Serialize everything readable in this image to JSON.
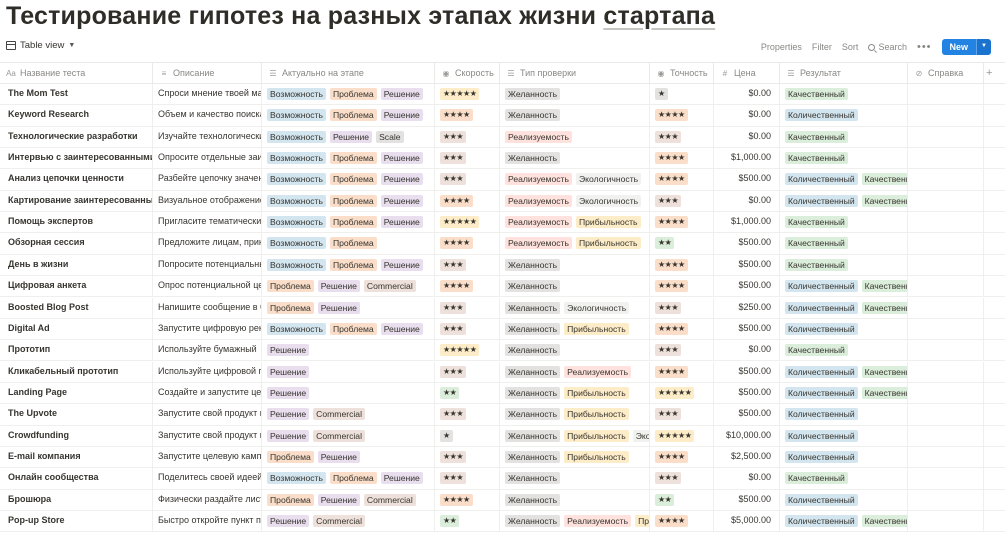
{
  "page_title_main": "Тестирование гипотез на разных этапах жизни ",
  "page_title_link": "стартапа",
  "toolbar": {
    "view_label": "Table view",
    "properties": "Properties",
    "filter": "Filter",
    "sort": "Sort",
    "search": "Search",
    "more": "•••",
    "new_label": "New",
    "new_drop": "▼"
  },
  "columns": [
    {
      "label": "Название теста",
      "icon": "Aa"
    },
    {
      "label": "Описание",
      "icon": "≡"
    },
    {
      "label": "Актуально на этапе",
      "icon": "☰"
    },
    {
      "label": "Скорость",
      "icon": "◉"
    },
    {
      "label": "Тип проверки",
      "icon": "☰"
    },
    {
      "label": "Точность",
      "icon": "◉"
    },
    {
      "label": "Цена",
      "icon": "#"
    },
    {
      "label": "Результат",
      "icon": "☰"
    },
    {
      "label": "Справка",
      "icon": "⊘"
    }
  ],
  "tag_colors": {
    "Возможность": "t-blue",
    "Проблема": "t-orange",
    "Решение": "t-purple",
    "Scale": "t-gray",
    "Commercial": "t-brown",
    "Желанность": "t-gray",
    "Реализуемость": "t-red",
    "Экологичность": "t-lightgray",
    "Прибыльность": "t-yellow",
    "Качественный": "t-green",
    "Количественный": "t-blue"
  },
  "rows": [
    {
      "name": "The Mom Test",
      "desc": "Спроси мнение твоей мамы",
      "stage": [
        "Возможность",
        "Проблема",
        "Решение"
      ],
      "speed": "★★★★★",
      "speed_color": "t-yellow",
      "check": [
        "Желанность"
      ],
      "acc": "★",
      "acc_color": "t-gray",
      "price": "$0.00",
      "result": [
        "Качественный"
      ]
    },
    {
      "name": "Keyword Research",
      "desc": "Объем и качество поиска",
      "stage": [
        "Возможность",
        "Проблема",
        "Решение"
      ],
      "speed": "★★★★",
      "speed_color": "t-orange",
      "check": [
        "Желанность"
      ],
      "acc": "★★★★",
      "acc_color": "t-orange",
      "price": "$0.00",
      "result": [
        "Количественный"
      ]
    },
    {
      "name": "Технологические разработки",
      "desc": "Изучайте технологические",
      "stage": [
        "Возможность",
        "Решение",
        "Scale"
      ],
      "speed": "★★★",
      "speed_color": "t-brown",
      "check": [
        "Реализуемость"
      ],
      "acc": "★★★",
      "acc_color": "t-brown",
      "price": "$0.00",
      "result": [
        "Качественный"
      ]
    },
    {
      "name": "Интервью с заинтересованными сторонами",
      "desc": "Опросите отдельные заинтересованные",
      "stage": [
        "Возможность",
        "Проблема",
        "Решение"
      ],
      "speed": "★★★",
      "speed_color": "t-brown",
      "check": [
        "Желанность"
      ],
      "acc": "★★★★",
      "acc_color": "t-orange",
      "price": "$1,000.00",
      "result": [
        "Качественный"
      ]
    },
    {
      "name": "Анализ цепочки ценности",
      "desc": "Разбейте цепочку значений",
      "stage": [
        "Возможность",
        "Проблема",
        "Решение"
      ],
      "speed": "★★★",
      "speed_color": "t-brown",
      "check": [
        "Реализуемость",
        "Экологичность"
      ],
      "acc": "★★★★",
      "acc_color": "t-orange",
      "price": "$500.00",
      "result": [
        "Количественный",
        "Качественный"
      ]
    },
    {
      "name": "Картирование заинтересованных сторон",
      "desc": "Визуальное отображение",
      "stage": [
        "Возможность",
        "Проблема",
        "Решение"
      ],
      "speed": "★★★★",
      "speed_color": "t-orange",
      "check": [
        "Реализуемость",
        "Экологичность"
      ],
      "acc": "★★★",
      "acc_color": "t-brown",
      "price": "$0.00",
      "result": [
        "Количественный",
        "Качественный"
      ]
    },
    {
      "name": "Помощь экспертов",
      "desc": "Пригласите тематических",
      "stage": [
        "Возможность",
        "Проблема",
        "Решение"
      ],
      "speed": "★★★★★",
      "speed_color": "t-yellow",
      "check": [
        "Реализуемость",
        "Прибыльность"
      ],
      "acc": "★★★★",
      "acc_color": "t-orange",
      "price": "$1,000.00",
      "result": [
        "Качественный"
      ]
    },
    {
      "name": "Обзорная сессия",
      "desc": "Предложите лицам, принимающим",
      "stage": [
        "Возможность",
        "Проблема"
      ],
      "speed": "★★★★",
      "speed_color": "t-orange",
      "check": [
        "Реализуемость",
        "Прибыльность"
      ],
      "acc": "★★",
      "acc_color": "t-green",
      "price": "$500.00",
      "result": [
        "Качественный"
      ]
    },
    {
      "name": "День в жизни",
      "desc": "Попросите потенциальных",
      "stage": [
        "Возможность",
        "Проблема",
        "Решение"
      ],
      "speed": "★★★",
      "speed_color": "t-brown",
      "check": [
        "Желанность"
      ],
      "acc": "★★★★",
      "acc_color": "t-orange",
      "price": "$500.00",
      "result": [
        "Качественный"
      ]
    },
    {
      "name": "Цифровая анкета",
      "desc": "Опрос потенциальной целевой",
      "stage": [
        "Проблема",
        "Решение",
        "Commercial"
      ],
      "speed": "★★★★",
      "speed_color": "t-orange",
      "check": [
        "Желанность"
      ],
      "acc": "★★★★",
      "acc_color": "t-orange",
      "price": "$500.00",
      "result": [
        "Количественный",
        "Качественный"
      ]
    },
    {
      "name": "Boosted Blog Post",
      "desc": "Напишите сообщение в блоге",
      "stage": [
        "Проблема",
        "Решение"
      ],
      "speed": "★★★",
      "speed_color": "t-brown",
      "check": [
        "Желанность",
        "Экологичность"
      ],
      "acc": "★★★",
      "acc_color": "t-brown",
      "price": "$250.00",
      "result": [
        "Количественный",
        "Качественный"
      ]
    },
    {
      "name": "Digital Ad",
      "desc": "Запустите цифровую рекламу",
      "stage": [
        "Возможность",
        "Проблема",
        "Решение"
      ],
      "speed": "★★★",
      "speed_color": "t-brown",
      "check": [
        "Желанность",
        "Прибыльность"
      ],
      "acc": "★★★★",
      "acc_color": "t-orange",
      "price": "$500.00",
      "result": [
        "Количественный"
      ]
    },
    {
      "name": "Прототип",
      "desc": "Используйте бумажный",
      "stage": [
        "Решение"
      ],
      "speed": "★★★★★",
      "speed_color": "t-yellow",
      "check": [
        "Желанность"
      ],
      "acc": "★★★",
      "acc_color": "t-brown",
      "price": "$0.00",
      "result": [
        "Качественный"
      ]
    },
    {
      "name": "Кликабельный прототип",
      "desc": "Используйте цифровой прототип",
      "stage": [
        "Решение"
      ],
      "speed": "★★★",
      "speed_color": "t-brown",
      "check": [
        "Желанность",
        "Реализуемость"
      ],
      "acc": "★★★★",
      "acc_color": "t-orange",
      "price": "$500.00",
      "result": [
        "Количественный",
        "Качественный"
      ]
    },
    {
      "name": "Landing Page",
      "desc": "Создайте и запустите целевую",
      "stage": [
        "Решение"
      ],
      "speed": "★★",
      "speed_color": "t-green",
      "check": [
        "Желанность",
        "Прибыльность"
      ],
      "acc": "★★★★★",
      "acc_color": "t-yellow",
      "price": "$500.00",
      "result": [
        "Количественный",
        "Качественный"
      ]
    },
    {
      "name": "The Upvote",
      "desc": "Запустите свой продукт на",
      "stage": [
        "Решение",
        "Commercial"
      ],
      "speed": "★★★",
      "speed_color": "t-brown",
      "check": [
        "Желанность",
        "Прибыльность"
      ],
      "acc": "★★★",
      "acc_color": "t-brown",
      "price": "$500.00",
      "result": [
        "Количественный"
      ]
    },
    {
      "name": "Crowdfunding",
      "desc": "Запустите свой продукт на",
      "stage": [
        "Решение",
        "Commercial"
      ],
      "speed": "★",
      "speed_color": "t-gray",
      "check": [
        "Желанность",
        "Прибыльность",
        "Экологичность"
      ],
      "acc": "★★★★★",
      "acc_color": "t-yellow",
      "price": "$10,000.00",
      "result": [
        "Количественный"
      ]
    },
    {
      "name": "E-mail компания",
      "desc": "Запустите целевую кампанию",
      "stage": [
        "Проблема",
        "Решение"
      ],
      "speed": "★★★",
      "speed_color": "t-brown",
      "check": [
        "Желанность",
        "Прибыльность"
      ],
      "acc": "★★★★",
      "acc_color": "t-orange",
      "price": "$2,500.00",
      "result": [
        "Количественный"
      ]
    },
    {
      "name": "Онлайн сообщества",
      "desc": "Поделитесь своей идеей",
      "stage": [
        "Возможность",
        "Проблема",
        "Решение"
      ],
      "speed": "★★★",
      "speed_color": "t-brown",
      "check": [
        "Желанность"
      ],
      "acc": "★★★",
      "acc_color": "t-brown",
      "price": "$0.00",
      "result": [
        "Качественный"
      ]
    },
    {
      "name": "Брошюра",
      "desc": "Физически раздайте листовки",
      "stage": [
        "Проблема",
        "Решение",
        "Commercial"
      ],
      "speed": "★★★★",
      "speed_color": "t-orange",
      "check": [
        "Желанность"
      ],
      "acc": "★★",
      "acc_color": "t-green",
      "price": "$500.00",
      "result": [
        "Количественный"
      ]
    },
    {
      "name": "Pop-up Store",
      "desc": "Быстро откройте пункт продаж",
      "stage": [
        "Решение",
        "Commercial"
      ],
      "speed": "★★",
      "speed_color": "t-green",
      "check": [
        "Желанность",
        "Реализуемость",
        "Прибыльность"
      ],
      "acc": "★★★★",
      "acc_color": "t-orange",
      "price": "$5,000.00",
      "result": [
        "Количественный",
        "Качественный"
      ]
    }
  ]
}
